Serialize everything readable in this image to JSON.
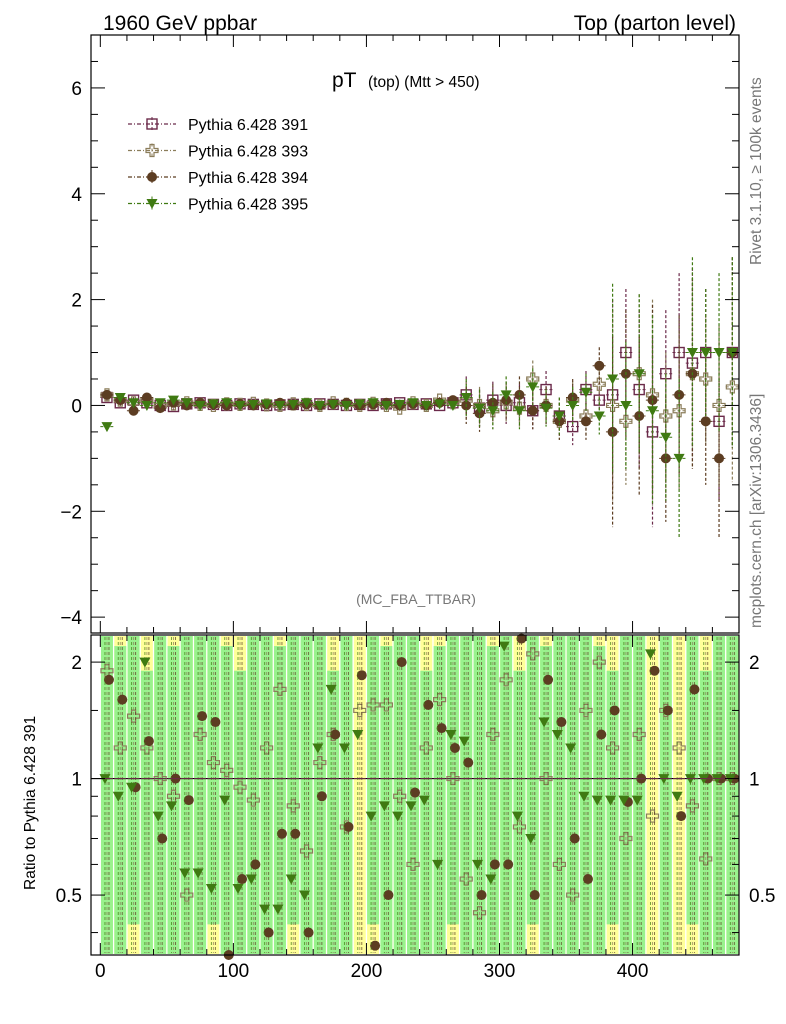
{
  "header": {
    "left": "1960 GeV ppbar",
    "right": "Top (parton level)"
  },
  "side": {
    "rivet": "Rivet 3.1.10, ≥ 100k events",
    "mcplots": "mcplots.cern.ch [arXiv:1306.3436]"
  },
  "chart_data": {
    "type": "scatter",
    "title": "pT",
    "title_sub": "(top) (Mtt > 450)",
    "watermark": "(MC_FBA_TTBAR)",
    "xlim": [
      -7,
      480
    ],
    "ylim": [
      -4.3,
      7.0
    ],
    "ratio_ylabel": "Ratio to Pythia 6.428 391",
    "ratio_ylim": [
      0.35,
      2.35
    ],
    "x_ticks": [
      "0",
      "100",
      "200",
      "300",
      "400"
    ],
    "y_ticks": [
      "−4",
      "−2",
      "0",
      "2",
      "4",
      "6"
    ],
    "ratio_ticks": [
      "0.5",
      "1",
      "2"
    ],
    "colors": {
      "s391": "#6b2a4a",
      "s393": "#8b7d5a",
      "s394": "#5c3d22",
      "s395": "#3f7a12",
      "band_yellow": "#ffff99",
      "band_green": "#99f28d"
    },
    "legend": [
      "Pythia 6.428 391",
      "Pythia 6.428 393",
      "Pythia 6.428 394",
      "Pythia 6.428 395"
    ],
    "x": [
      5,
      15,
      25,
      35,
      45,
      55,
      65,
      75,
      85,
      95,
      105,
      115,
      125,
      135,
      145,
      155,
      165,
      175,
      185,
      195,
      205,
      215,
      225,
      235,
      245,
      255,
      265,
      275,
      285,
      295,
      305,
      315,
      325,
      335,
      345,
      355,
      365,
      375,
      385,
      395,
      405,
      415,
      425,
      435,
      445,
      455,
      465,
      475
    ],
    "series": [
      {
        "name": "Pythia 6.428 391",
        "marker": "square",
        "values": [
          0.15,
          0.05,
          0.1,
          0.05,
          0.0,
          -0.02,
          0.03,
          0.05,
          0.02,
          0.0,
          0.03,
          0.02,
          0.0,
          0.01,
          0.02,
          0.0,
          0.03,
          0.02,
          0.0,
          0.02,
          0.0,
          0.03,
          0.05,
          0.02,
          0.03,
          0.0,
          0.05,
          0.2,
          -0.05,
          0.1,
          0.0,
          0.05,
          -0.1,
          0.3,
          -0.2,
          -0.4,
          0.3,
          0.1,
          0.2,
          1.0,
          0.3,
          -0.5,
          0.6,
          1.0,
          0.8,
          1.0,
          -0.3,
          1.0
        ]
      },
      {
        "name": "Pythia 6.428 393",
        "marker": "cross",
        "values": [
          0.2,
          0.1,
          0.05,
          0.1,
          0.0,
          0.03,
          0.05,
          0.02,
          0.0,
          0.03,
          0.02,
          0.04,
          0.01,
          0.0,
          0.03,
          0.02,
          0.0,
          0.05,
          0.02,
          0.0,
          0.04,
          0.0,
          -0.05,
          0.05,
          0.0,
          0.1,
          0.05,
          0.1,
          0.0,
          -0.1,
          0.05,
          -0.05,
          0.5,
          0.0,
          -0.3,
          0.1,
          -0.2,
          0.4,
          0.0,
          -0.3,
          0.6,
          0.2,
          -0.2,
          -0.1,
          0.6,
          0.5,
          0.0,
          0.35
        ]
      },
      {
        "name": "Pythia 6.428 394",
        "marker": "circle",
        "values": [
          0.2,
          0.1,
          -0.1,
          0.15,
          -0.05,
          0.05,
          0.0,
          0.05,
          0.02,
          0.0,
          0.03,
          0.0,
          0.02,
          0.05,
          0.0,
          0.02,
          0.0,
          0.03,
          0.05,
          0.0,
          0.02,
          0.05,
          0.0,
          0.03,
          0.0,
          0.05,
          0.1,
          0.0,
          -0.15,
          0.05,
          0.1,
          0.2,
          -0.1,
          0.0,
          -0.3,
          0.15,
          -0.3,
          0.75,
          -0.5,
          0.6,
          -0.2,
          0.1,
          -1.0,
          0.2,
          0.6,
          -0.3,
          -1.0,
          1.0
        ]
      },
      {
        "name": "Pythia 6.428 395",
        "marker": "triangle-down",
        "values": [
          -0.4,
          0.15,
          0.05,
          0.0,
          0.05,
          0.1,
          0.05,
          0.0,
          0.03,
          0.05,
          0.0,
          0.02,
          0.03,
          0.0,
          0.02,
          0.05,
          0.0,
          0.02,
          0.0,
          0.03,
          0.05,
          0.0,
          0.02,
          0.05,
          0.0,
          0.03,
          0.0,
          0.15,
          -0.05,
          -0.1,
          0.2,
          -0.1,
          0.35,
          -0.05,
          -0.2,
          0.0,
          0.25,
          -0.2,
          0.5,
          0.0,
          0.6,
          -0.1,
          -0.6,
          -1.0,
          1.0,
          1.0,
          1.0,
          1.0
        ]
      }
    ],
    "ratio_series": [
      {
        "name": "Pythia 6.428 393",
        "values": [
          1.9,
          1.2,
          1.45,
          1.2,
          1.0,
          0.9,
          0.5,
          1.3,
          1.1,
          1.05,
          0.95,
          0.88,
          1.2,
          1.7,
          0.85,
          0.65,
          1.1,
          1.3,
          0.75,
          1.5,
          1.55,
          1.55,
          0.9,
          0.6,
          1.2,
          1.6,
          1.0,
          0.55,
          0.45,
          1.3,
          1.8,
          0.75,
          2.1,
          1.0,
          0.6,
          0.5,
          1.5,
          2.0,
          1.2,
          0.7,
          1.3,
          0.8,
          1.5,
          1.2,
          0.85,
          0.62,
          1.0,
          1.0
        ]
      },
      {
        "name": "Pythia 6.428 394",
        "values": [
          1.8,
          1.6,
          0.95,
          1.25,
          0.7,
          1.0,
          0.88,
          1.45,
          1.4,
          0.35,
          0.55,
          0.6,
          0.4,
          0.72,
          0.72,
          0.4,
          0.9,
          1.3,
          0.75,
          1.85,
          0.37,
          0.5,
          2.0,
          0.92,
          1.55,
          1.35,
          1.2,
          1.1,
          0.5,
          0.6,
          0.6,
          2.3,
          0.5,
          1.8,
          1.4,
          0.7,
          0.55,
          1.3,
          1.5,
          0.87,
          1.0,
          1.9,
          1.5,
          0.8,
          1.7,
          1.0,
          1.0,
          1.0
        ]
      },
      {
        "name": "Pythia 6.428 395",
        "values": [
          1.0,
          0.9,
          0.95,
          2.0,
          0.8,
          0.85,
          0.57,
          0.57,
          0.52,
          0.88,
          0.52,
          0.55,
          0.46,
          0.46,
          0.55,
          0.5,
          1.2,
          1.7,
          1.2,
          1.3,
          0.8,
          0.85,
          0.8,
          0.85,
          0.88,
          0.6,
          1.3,
          1.25,
          0.6,
          0.55,
          2.2,
          0.8,
          0.7,
          1.4,
          1.3,
          1.2,
          0.9,
          0.88,
          0.88,
          0.88,
          0.88,
          2.1,
          1.0,
          0.9,
          1.0,
          1.0,
          1.0,
          1.0
        ]
      }
    ]
  }
}
